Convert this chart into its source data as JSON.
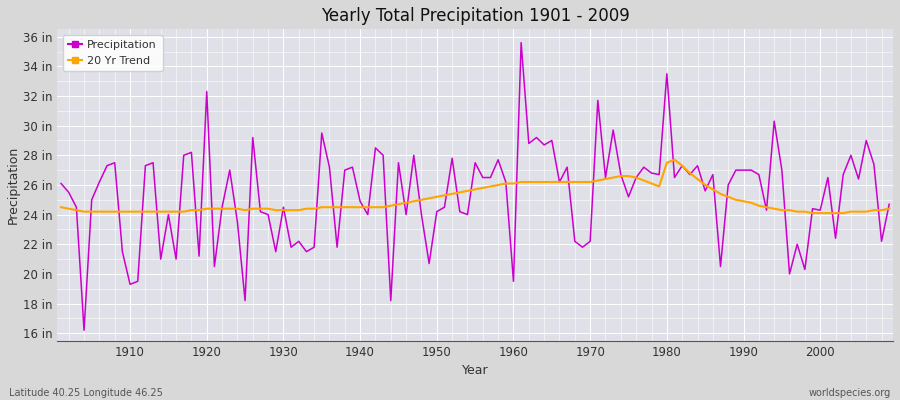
{
  "title": "Yearly Total Precipitation 1901 - 2009",
  "xlabel": "Year",
  "ylabel": "Precipitation",
  "bg_color": "#d8d8d8",
  "plot_bg_color": "#e0e0e8",
  "precip_color": "#cc00cc",
  "trend_color": "#ffa500",
  "lat_lon_label": "Latitude 40.25 Longitude 46.25",
  "source_label": "worldspecies.org",
  "ylim": [
    15.5,
    36.5
  ],
  "yticks": [
    16,
    18,
    20,
    22,
    24,
    26,
    28,
    30,
    32,
    34,
    36
  ],
  "years": [
    1901,
    1902,
    1903,
    1904,
    1905,
    1906,
    1907,
    1908,
    1909,
    1910,
    1911,
    1912,
    1913,
    1914,
    1915,
    1916,
    1917,
    1918,
    1919,
    1920,
    1921,
    1922,
    1923,
    1924,
    1925,
    1926,
    1927,
    1928,
    1929,
    1930,
    1931,
    1932,
    1933,
    1934,
    1935,
    1936,
    1937,
    1938,
    1939,
    1940,
    1941,
    1942,
    1943,
    1944,
    1945,
    1946,
    1947,
    1948,
    1949,
    1950,
    1951,
    1952,
    1953,
    1954,
    1955,
    1956,
    1957,
    1958,
    1959,
    1960,
    1961,
    1962,
    1963,
    1964,
    1965,
    1966,
    1967,
    1968,
    1969,
    1970,
    1971,
    1972,
    1973,
    1974,
    1975,
    1976,
    1977,
    1978,
    1979,
    1980,
    1981,
    1982,
    1983,
    1984,
    1985,
    1986,
    1987,
    1988,
    1989,
    1990,
    1991,
    1992,
    1993,
    1994,
    1995,
    1996,
    1997,
    1998,
    1999,
    2000,
    2001,
    2002,
    2003,
    2004,
    2005,
    2006,
    2007,
    2008,
    2009
  ],
  "precip": [
    26.1,
    25.5,
    24.5,
    16.2,
    25.0,
    26.2,
    27.3,
    27.5,
    21.5,
    19.3,
    19.5,
    27.3,
    27.5,
    21.0,
    24.0,
    21.0,
    28.0,
    28.2,
    21.2,
    32.3,
    20.5,
    24.5,
    27.0,
    23.5,
    18.2,
    29.2,
    24.2,
    24.0,
    21.5,
    24.5,
    21.8,
    22.2,
    21.5,
    21.8,
    29.5,
    27.2,
    21.8,
    27.0,
    27.2,
    24.9,
    24.0,
    28.5,
    28.0,
    18.2,
    27.5,
    24.0,
    28.0,
    24.0,
    20.7,
    24.2,
    24.5,
    27.8,
    24.2,
    24.0,
    27.5,
    26.5,
    26.5,
    27.7,
    26.2,
    19.5,
    35.6,
    28.8,
    29.2,
    28.7,
    29.0,
    26.2,
    27.2,
    22.2,
    21.8,
    22.2,
    31.7,
    26.5,
    29.7,
    26.7,
    25.2,
    26.5,
    27.2,
    26.8,
    26.7,
    33.5,
    26.5,
    27.3,
    26.7,
    27.3,
    25.6,
    26.7,
    20.5,
    26.0,
    27.0,
    27.0,
    27.0,
    26.7,
    24.3,
    30.3,
    27.0,
    20.0,
    22.0,
    20.3,
    24.4,
    24.3,
    26.5,
    22.4,
    26.7,
    28.0,
    26.4,
    29.0,
    27.4,
    22.2,
    24.7
  ],
  "trend": [
    24.5,
    24.4,
    24.3,
    24.2,
    24.2,
    24.2,
    24.2,
    24.2,
    24.2,
    24.2,
    24.2,
    24.2,
    24.2,
    24.2,
    24.2,
    24.2,
    24.2,
    24.3,
    24.3,
    24.4,
    24.4,
    24.4,
    24.4,
    24.4,
    24.3,
    24.4,
    24.4,
    24.4,
    24.3,
    24.3,
    24.3,
    24.3,
    24.4,
    24.4,
    24.5,
    24.5,
    24.5,
    24.5,
    24.5,
    24.5,
    24.5,
    24.5,
    24.5,
    24.6,
    24.7,
    24.8,
    24.9,
    25.0,
    25.1,
    25.2,
    25.3,
    25.4,
    25.5,
    25.6,
    25.7,
    25.8,
    25.9,
    26.0,
    26.1,
    26.1,
    26.2,
    26.2,
    26.2,
    26.2,
    26.2,
    26.2,
    26.2,
    26.2,
    26.2,
    26.2,
    26.3,
    26.4,
    26.5,
    26.6,
    26.6,
    26.5,
    26.3,
    26.1,
    25.9,
    27.5,
    27.7,
    27.3,
    26.8,
    26.4,
    26.0,
    25.7,
    25.4,
    25.2,
    25.0,
    24.9,
    24.8,
    24.6,
    24.5,
    24.4,
    24.3,
    24.3,
    24.2,
    24.2,
    24.1,
    24.1,
    24.1,
    24.1,
    24.1,
    24.2,
    24.2,
    24.2,
    24.3,
    24.3,
    24.4
  ]
}
